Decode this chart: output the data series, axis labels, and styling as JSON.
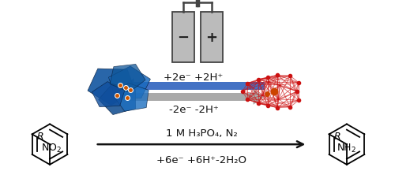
{
  "background_color": "#ffffff",
  "arrow_upper_label": "+2e⁻ +2H⁺",
  "arrow_lower_label": "-2e⁻ -2H⁺",
  "reaction_label_1": "1 M H₃PO₄, N₂",
  "reaction_label_2": "+6e⁻ +6H⁺-2H₂O",
  "font_size_labels": 9.5,
  "arrow_blue_color": "#4472c4",
  "arrow_gray_color": "#aaaaaa",
  "arrow_black_color": "#111111",
  "battery_color": "#bbbbbb",
  "battery_edge_color": "#444444"
}
